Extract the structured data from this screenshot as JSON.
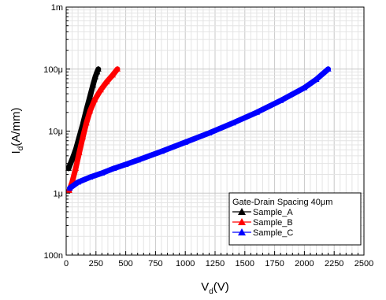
{
  "chart_data": {
    "type": "line",
    "x_scale": "linear",
    "y_scale": "log",
    "xlim": [
      0,
      2500
    ],
    "ylim": [
      1e-07,
      0.001
    ],
    "x_ticks": [
      0,
      250,
      500,
      750,
      1000,
      1250,
      1500,
      1750,
      2000,
      2250,
      2500
    ],
    "x_tick_labels": [
      "0",
      "250",
      "500",
      "750",
      "1000",
      "1250",
      "1500",
      "1750",
      "2000",
      "2250",
      "2500"
    ],
    "y_ticks": [
      1e-07,
      1e-06,
      1e-05,
      0.0001,
      0.001
    ],
    "y_tick_labels": [
      "100n",
      "1μ",
      "10μ",
      "100μ",
      "1m"
    ],
    "xlabel": {
      "main": "V",
      "sub": "d",
      "unit": "(V)"
    },
    "ylabel": {
      "main": "I",
      "sub": "d",
      "unit": "(A/mm)"
    },
    "grid": true,
    "legend": {
      "title": "Gate-Drain Spacing  40μm",
      "position": "bottom-right"
    },
    "series": [
      {
        "name": "Sample_A",
        "color": "#000000",
        "marker": "triangle-up",
        "points": [
          [
            20,
            2.5e-06
          ],
          [
            50,
            3.5e-06
          ],
          [
            80,
            5e-06
          ],
          [
            110,
            8e-06
          ],
          [
            140,
            1.3e-05
          ],
          [
            170,
            2.2e-05
          ],
          [
            200,
            3.6e-05
          ],
          [
            225,
            5.5e-05
          ],
          [
            245,
            7.5e-05
          ],
          [
            260,
            9e-05
          ],
          [
            270,
            0.0001
          ]
        ]
      },
      {
        "name": "Sample_B",
        "color": "#ff0000",
        "marker": "triangle-up",
        "points": [
          [
            25,
            1.1e-06
          ],
          [
            50,
            1.5e-06
          ],
          [
            80,
            2.5e-06
          ],
          [
            110,
            4.5e-06
          ],
          [
            140,
            8e-06
          ],
          [
            170,
            1.35e-05
          ],
          [
            200,
            2.1e-05
          ],
          [
            240,
            3.2e-05
          ],
          [
            290,
            4.6e-05
          ],
          [
            340,
            6.2e-05
          ],
          [
            390,
            8e-05
          ],
          [
            430,
            0.0001
          ]
        ]
      },
      {
        "name": "Sample_C",
        "color": "#0000ff",
        "marker": "triangle-up",
        "points": [
          [
            30,
            1.2e-06
          ],
          [
            100,
            1.5e-06
          ],
          [
            200,
            1.8e-06
          ],
          [
            300,
            2.1e-06
          ],
          [
            400,
            2.5e-06
          ],
          [
            500,
            2.9e-06
          ],
          [
            600,
            3.4e-06
          ],
          [
            800,
            4.7e-06
          ],
          [
            1000,
            6.6e-06
          ],
          [
            1200,
            9.3e-06
          ],
          [
            1400,
            1.35e-05
          ],
          [
            1600,
            2e-05
          ],
          [
            1800,
            3.1e-05
          ],
          [
            2000,
            5e-05
          ],
          [
            2100,
            6.8e-05
          ],
          [
            2200,
            0.0001
          ]
        ]
      }
    ]
  }
}
